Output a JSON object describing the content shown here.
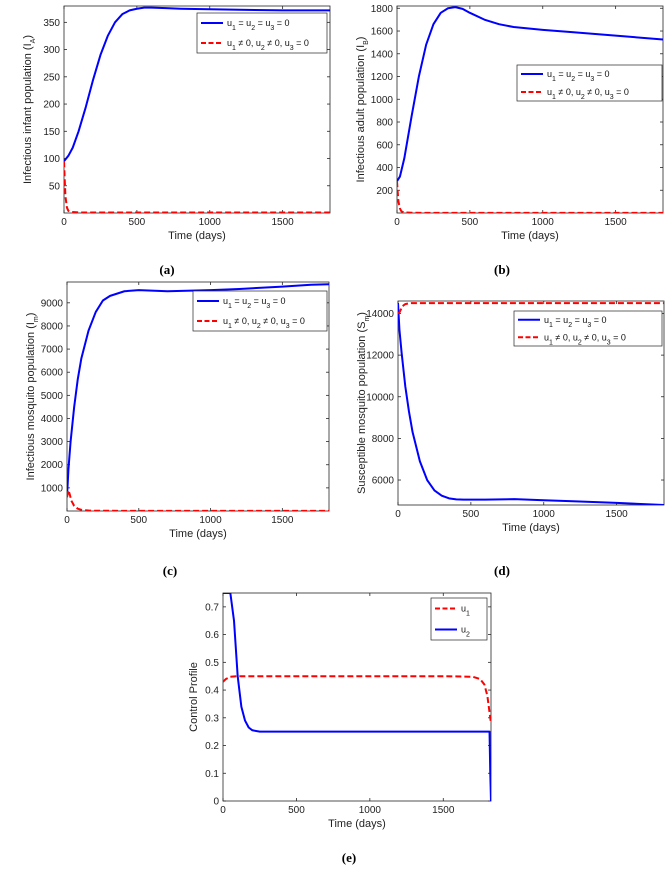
{
  "chart_data": [
    {
      "id": "a",
      "type": "line",
      "panel_label": "(a)",
      "xlabel": "Time (days)",
      "ylabel": "Infectious infant population (I",
      "ylabel_sub": "A",
      "ylabel_tail": ")",
      "xlim": [
        0,
        1825
      ],
      "ylim": [
        0,
        380
      ],
      "xticks": [
        0,
        500,
        1000,
        1500
      ],
      "yticks": [
        50,
        100,
        150,
        200,
        250,
        300,
        350
      ],
      "legend_position": "top-right",
      "series": [
        {
          "legend": [
            [
              "u",
              "1"
            ],
            [
              " = u",
              "2"
            ],
            [
              " = u",
              "3"
            ],
            [
              " = 0",
              ""
            ]
          ],
          "color": "#0000ff",
          "dash": "solid",
          "x": [
            0,
            30,
            60,
            100,
            150,
            200,
            250,
            300,
            350,
            400,
            450,
            500,
            550,
            600,
            700,
            800,
            1000,
            1200,
            1500,
            1825
          ],
          "y": [
            95,
            105,
            120,
            150,
            195,
            245,
            290,
            325,
            350,
            365,
            372,
            375,
            377,
            377,
            376,
            375,
            374,
            373,
            372,
            372
          ]
        },
        {
          "legend": [
            [
              "u",
              "1"
            ],
            [
              " ≠ 0, u",
              "2"
            ],
            [
              " ≠ 0, u",
              "3"
            ],
            [
              " = 0",
              ""
            ]
          ],
          "color": "#ff0000",
          "dash": "dashed",
          "x": [
            0,
            5,
            10,
            20,
            30,
            50,
            100,
            200,
            500,
            1000,
            1500,
            1825
          ],
          "y": [
            95,
            60,
            30,
            10,
            4,
            2,
            1,
            1,
            1,
            1,
            1,
            1
          ]
        }
      ]
    },
    {
      "id": "b",
      "type": "line",
      "panel_label": "(b)",
      "xlabel": "Time (days)",
      "ylabel": "Infectious adult population (I",
      "ylabel_sub": "B",
      "ylabel_tail": ")",
      "xlim": [
        0,
        1825
      ],
      "ylim": [
        0,
        1820
      ],
      "xticks": [
        0,
        500,
        1000,
        1500
      ],
      "yticks": [
        200,
        400,
        600,
        800,
        1000,
        1200,
        1400,
        1600,
        1800
      ],
      "legend_position": "center-right",
      "series": [
        {
          "legend": [
            [
              "u",
              "1"
            ],
            [
              " = u",
              "2"
            ],
            [
              " = u",
              "3"
            ],
            [
              " = 0",
              ""
            ]
          ],
          "color": "#0000ff",
          "dash": "solid",
          "x": [
            0,
            20,
            50,
            100,
            150,
            200,
            250,
            300,
            350,
            400,
            450,
            500,
            600,
            700,
            800,
            1000,
            1200,
            1500,
            1825
          ],
          "y": [
            280,
            320,
            480,
            850,
            1200,
            1480,
            1660,
            1760,
            1800,
            1810,
            1795,
            1760,
            1700,
            1660,
            1635,
            1610,
            1590,
            1560,
            1525
          ]
        },
        {
          "legend": [
            [
              "u",
              "1"
            ],
            [
              " ≠ 0, u",
              "2"
            ],
            [
              " ≠ 0, u",
              "3"
            ],
            [
              " = 0",
              ""
            ]
          ],
          "color": "#ff0000",
          "dash": "dashed",
          "x": [
            0,
            5,
            10,
            20,
            30,
            50,
            100,
            200,
            500,
            1000,
            1500,
            1825
          ],
          "y": [
            280,
            180,
            100,
            40,
            15,
            5,
            2,
            1,
            1,
            1,
            1,
            1
          ]
        }
      ]
    },
    {
      "id": "c",
      "type": "line",
      "panel_label": "(c)",
      "xlabel": "Time (days)",
      "ylabel": "Infectious mosquito population (I",
      "ylabel_sub": "m",
      "ylabel_tail": ")",
      "xlim": [
        0,
        1825
      ],
      "ylim": [
        0,
        9900
      ],
      "xticks": [
        0,
        500,
        1000,
        1500
      ],
      "yticks": [
        1000,
        2000,
        3000,
        4000,
        5000,
        6000,
        7000,
        8000,
        9000
      ],
      "legend_position": "top-right",
      "series": [
        {
          "legend": [
            [
              "u",
              "1"
            ],
            [
              " = u",
              "2"
            ],
            [
              " = u",
              "3"
            ],
            [
              " = 0",
              ""
            ]
          ],
          "color": "#0000ff",
          "dash": "solid",
          "x": [
            0,
            10,
            25,
            50,
            75,
            100,
            150,
            200,
            250,
            300,
            400,
            500,
            700,
            1000,
            1200,
            1500,
            1700,
            1825
          ],
          "y": [
            600,
            1800,
            3000,
            4500,
            5700,
            6600,
            7800,
            8600,
            9100,
            9300,
            9500,
            9550,
            9500,
            9550,
            9600,
            9700,
            9780,
            9800
          ]
        },
        {
          "legend": [
            [
              "u",
              "1"
            ],
            [
              " ≠ 0, u",
              "2"
            ],
            [
              " ≠ 0, u",
              "3"
            ],
            [
              " = 0",
              ""
            ]
          ],
          "color": "#ff0000",
          "dash": "dashed",
          "x": [
            0,
            10,
            20,
            30,
            50,
            75,
            100,
            150,
            200,
            500,
            1000,
            1500,
            1825
          ],
          "y": [
            600,
            900,
            700,
            450,
            220,
            100,
            50,
            20,
            10,
            5,
            5,
            5,
            5
          ]
        }
      ]
    },
    {
      "id": "d",
      "type": "line",
      "panel_label": "(d)",
      "xlabel": "Time (days)",
      "ylabel": "Susceptible mosquito population (S",
      "ylabel_sub": "m",
      "ylabel_tail": ")",
      "xlim": [
        0,
        1825
      ],
      "ylim": [
        4800,
        14600
      ],
      "xticks": [
        0,
        500,
        1000,
        1500
      ],
      "yticks": [
        6000,
        8000,
        10000,
        12000,
        14000
      ],
      "legend_position": "top-right",
      "series": [
        {
          "legend": [
            [
              "u",
              "1"
            ],
            [
              " = u",
              "2"
            ],
            [
              " = u",
              "3"
            ],
            [
              " = 0",
              ""
            ]
          ],
          "color": "#0000ff",
          "dash": "solid",
          "x": [
            0,
            10,
            25,
            50,
            75,
            100,
            150,
            200,
            250,
            300,
            350,
            400,
            450,
            500,
            600,
            800,
            1000,
            1200,
            1500,
            1825
          ],
          "y": [
            14500,
            13200,
            12100,
            10500,
            9300,
            8300,
            6900,
            6000,
            5500,
            5250,
            5120,
            5070,
            5060,
            5060,
            5060,
            5080,
            5030,
            4980,
            4900,
            4800
          ]
        },
        {
          "legend": [
            [
              "u",
              "1"
            ],
            [
              " ≠ 0, u",
              "2"
            ],
            [
              " ≠ 0, u",
              "3"
            ],
            [
              " = 0",
              ""
            ]
          ],
          "color": "#ff0000",
          "dash": "dashed",
          "x": [
            0,
            10,
            20,
            30,
            50,
            75,
            100,
            150,
            200,
            500,
            1000,
            1500,
            1825
          ],
          "y": [
            14000,
            14050,
            14200,
            14350,
            14450,
            14490,
            14500,
            14500,
            14500,
            14500,
            14500,
            14500,
            14500
          ]
        }
      ]
    },
    {
      "id": "e",
      "type": "line",
      "panel_label": "(e)",
      "xlabel": "Time (days)",
      "ylabel": "Control Profile",
      "ylabel_sub": "",
      "ylabel_tail": "",
      "xlim": [
        0,
        1825
      ],
      "ylim": [
        0,
        0.75
      ],
      "xticks": [
        0,
        500,
        1000,
        1500
      ],
      "yticks": [
        0,
        0.1,
        0.2,
        0.3,
        0.4,
        0.5,
        0.6,
        0.7
      ],
      "legend_position": "top-right",
      "legend_reverse": true,
      "series": [
        {
          "legend": [
            [
              "u",
              "2"
            ]
          ],
          "color": "#0000ff",
          "dash": "solid",
          "x": [
            0,
            50,
            75,
            100,
            125,
            150,
            175,
            200,
            250,
            300,
            500,
            1000,
            1500,
            1800,
            1815,
            1820,
            1825
          ],
          "y": [
            0.75,
            0.75,
            0.65,
            0.45,
            0.34,
            0.29,
            0.265,
            0.255,
            0.25,
            0.25,
            0.25,
            0.25,
            0.25,
            0.25,
            0.25,
            0.1,
            0
          ]
        },
        {
          "legend": [
            [
              "u",
              "1"
            ]
          ],
          "color": "#ff0000",
          "dash": "dashed",
          "x": [
            0,
            20,
            50,
            100,
            150,
            200,
            500,
            1000,
            1500,
            1700,
            1750,
            1780,
            1800,
            1815,
            1825
          ],
          "y": [
            0.43,
            0.44,
            0.448,
            0.45,
            0.45,
            0.45,
            0.45,
            0.45,
            0.45,
            0.448,
            0.44,
            0.42,
            0.38,
            0.32,
            0.28
          ]
        }
      ]
    }
  ]
}
